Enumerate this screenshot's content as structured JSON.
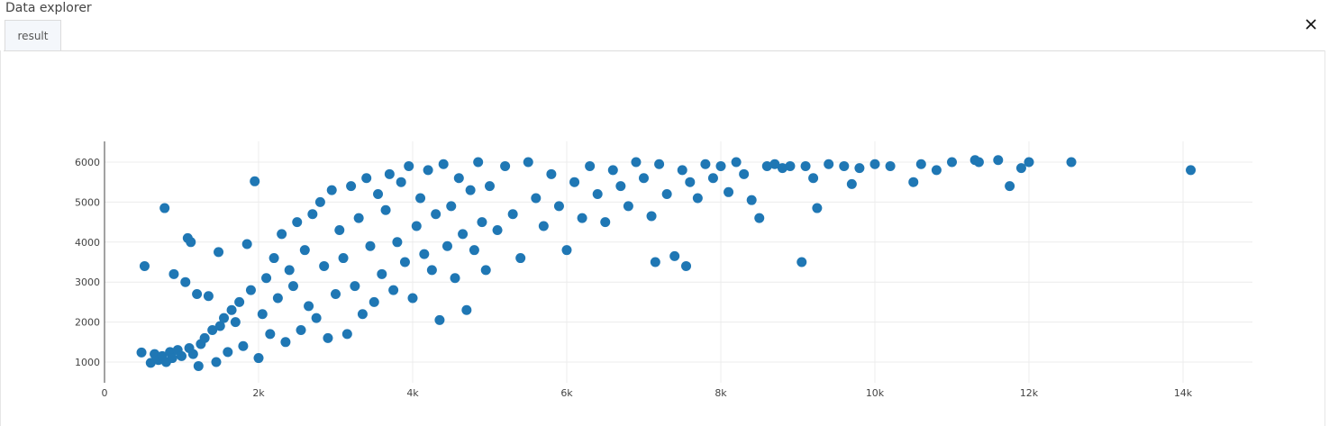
{
  "window": {
    "title": "Data explorer",
    "close_icon": "close-icon"
  },
  "tabs": [
    {
      "label": "result",
      "active": true
    }
  ],
  "chart_data": {
    "type": "scatter",
    "title": "",
    "xlabel": "",
    "ylabel": "",
    "xlim": [
      0,
      14900
    ],
    "ylim": [
      700,
      6500
    ],
    "x_ticks": [
      0,
      2000,
      4000,
      6000,
      8000,
      10000,
      12000,
      14000
    ],
    "x_tick_labels": [
      "0",
      "2k",
      "4k",
      "6k",
      "8k",
      "10k",
      "12k",
      "14k"
    ],
    "y_ticks": [
      1000,
      2000,
      3000,
      4000,
      5000,
      6000
    ],
    "y_tick_labels": [
      "1000",
      "2000",
      "3000",
      "4000",
      "5000",
      "6000"
    ],
    "grid": true,
    "legend": "none",
    "marker_color": "#1f77b4",
    "series": [
      {
        "points": [
          [
            480,
            1240
          ],
          [
            520,
            3400
          ],
          [
            600,
            980
          ],
          [
            650,
            1200
          ],
          [
            700,
            1050
          ],
          [
            750,
            1150
          ],
          [
            780,
            4850
          ],
          [
            800,
            1000
          ],
          [
            850,
            1250
          ],
          [
            880,
            1100
          ],
          [
            900,
            3200
          ],
          [
            950,
            1300
          ],
          [
            1000,
            1150
          ],
          [
            1050,
            3000
          ],
          [
            1080,
            4100
          ],
          [
            1100,
            1350
          ],
          [
            1120,
            4000
          ],
          [
            1150,
            1200
          ],
          [
            1200,
            2700
          ],
          [
            1220,
            900
          ],
          [
            1250,
            1450
          ],
          [
            1300,
            1600
          ],
          [
            1350,
            2650
          ],
          [
            1400,
            1800
          ],
          [
            1450,
            1000
          ],
          [
            1480,
            3750
          ],
          [
            1500,
            1900
          ],
          [
            1550,
            2100
          ],
          [
            1600,
            1250
          ],
          [
            1650,
            2300
          ],
          [
            1700,
            2000
          ],
          [
            1750,
            2500
          ],
          [
            1800,
            1400
          ],
          [
            1850,
            3950
          ],
          [
            1900,
            2800
          ],
          [
            1950,
            5520
          ],
          [
            2000,
            1100
          ],
          [
            2050,
            2200
          ],
          [
            2100,
            3100
          ],
          [
            2150,
            1700
          ],
          [
            2200,
            3600
          ],
          [
            2250,
            2600
          ],
          [
            2300,
            4200
          ],
          [
            2350,
            1500
          ],
          [
            2400,
            3300
          ],
          [
            2450,
            2900
          ],
          [
            2500,
            4500
          ],
          [
            2550,
            1800
          ],
          [
            2600,
            3800
          ],
          [
            2650,
            2400
          ],
          [
            2700,
            4700
          ],
          [
            2750,
            2100
          ],
          [
            2800,
            5000
          ],
          [
            2850,
            3400
          ],
          [
            2900,
            1600
          ],
          [
            2950,
            5300
          ],
          [
            3000,
            2700
          ],
          [
            3050,
            4300
          ],
          [
            3100,
            3600
          ],
          [
            3150,
            1700
          ],
          [
            3200,
            5400
          ],
          [
            3250,
            2900
          ],
          [
            3300,
            4600
          ],
          [
            3350,
            2200
          ],
          [
            3400,
            5600
          ],
          [
            3450,
            3900
          ],
          [
            3500,
            2500
          ],
          [
            3550,
            5200
          ],
          [
            3600,
            3200
          ],
          [
            3650,
            4800
          ],
          [
            3700,
            5700
          ],
          [
            3750,
            2800
          ],
          [
            3800,
            4000
          ],
          [
            3850,
            5500
          ],
          [
            3900,
            3500
          ],
          [
            3950,
            5900
          ],
          [
            4000,
            2600
          ],
          [
            4050,
            4400
          ],
          [
            4100,
            5100
          ],
          [
            4150,
            3700
          ],
          [
            4200,
            5800
          ],
          [
            4250,
            3300
          ],
          [
            4300,
            4700
          ],
          [
            4350,
            2050
          ],
          [
            4400,
            5950
          ],
          [
            4450,
            3900
          ],
          [
            4500,
            4900
          ],
          [
            4550,
            3100
          ],
          [
            4600,
            5600
          ],
          [
            4650,
            4200
          ],
          [
            4700,
            2300
          ],
          [
            4750,
            5300
          ],
          [
            4800,
            3800
          ],
          [
            4850,
            6000
          ],
          [
            4900,
            4500
          ],
          [
            4950,
            3300
          ],
          [
            5000,
            5400
          ],
          [
            5100,
            4300
          ],
          [
            5200,
            5900
          ],
          [
            5300,
            4700
          ],
          [
            5400,
            3600
          ],
          [
            5500,
            6000
          ],
          [
            5600,
            5100
          ],
          [
            5700,
            4400
          ],
          [
            5800,
            5700
          ],
          [
            5900,
            4900
          ],
          [
            6000,
            3800
          ],
          [
            6100,
            5500
          ],
          [
            6200,
            4600
          ],
          [
            6300,
            5900
          ],
          [
            6400,
            5200
          ],
          [
            6500,
            4500
          ],
          [
            6600,
            5800
          ],
          [
            6700,
            5400
          ],
          [
            6800,
            4900
          ],
          [
            6900,
            6000
          ],
          [
            7000,
            5600
          ],
          [
            7100,
            4650
          ],
          [
            7150,
            3500
          ],
          [
            7200,
            5950
          ],
          [
            7300,
            5200
          ],
          [
            7400,
            3650
          ],
          [
            7500,
            5800
          ],
          [
            7550,
            3400
          ],
          [
            7600,
            5500
          ],
          [
            7700,
            5100
          ],
          [
            7800,
            5950
          ],
          [
            7900,
            5600
          ],
          [
            8000,
            5900
          ],
          [
            8100,
            5250
          ],
          [
            8200,
            6000
          ],
          [
            8300,
            5700
          ],
          [
            8400,
            5050
          ],
          [
            8500,
            4600
          ],
          [
            8600,
            5900
          ],
          [
            8700,
            5950
          ],
          [
            8800,
            5850
          ],
          [
            8900,
            5900
          ],
          [
            9050,
            3500
          ],
          [
            9100,
            5900
          ],
          [
            9200,
            5600
          ],
          [
            9250,
            4850
          ],
          [
            9400,
            5950
          ],
          [
            9600,
            5900
          ],
          [
            9700,
            5450
          ],
          [
            9800,
            5850
          ],
          [
            10000,
            5950
          ],
          [
            10200,
            5900
          ],
          [
            10500,
            5500
          ],
          [
            10600,
            5950
          ],
          [
            10800,
            5800
          ],
          [
            11000,
            6000
          ],
          [
            11300,
            6050
          ],
          [
            11350,
            6000
          ],
          [
            11600,
            6050
          ],
          [
            11750,
            5400
          ],
          [
            11900,
            5850
          ],
          [
            12000,
            6000
          ],
          [
            12550,
            6000
          ],
          [
            14100,
            5800
          ]
        ]
      }
    ]
  }
}
